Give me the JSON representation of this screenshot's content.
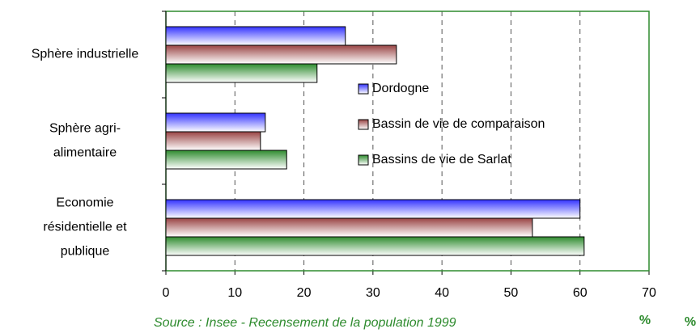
{
  "chart_data": {
    "type": "barh",
    "categories": [
      [
        "Sphère industrielle"
      ],
      [
        "Sphère agri-",
        "alimentaire"
      ],
      [
        "Economie",
        "résidentielle et",
        "publique"
      ]
    ],
    "series": [
      {
        "name": "Dordogne",
        "color": "#3333ff",
        "values": [
          26.0,
          14.4,
          60.0
        ]
      },
      {
        "name": "Bassin de vie de comparaison",
        "color": "#994444",
        "values": [
          33.4,
          13.7,
          53.1
        ]
      },
      {
        "name": "Bassins de vie de Sarlat",
        "color": "#2e8b2e",
        "values": [
          21.9,
          17.5,
          60.6
        ]
      }
    ],
    "xlim": [
      0,
      70
    ],
    "xticks": [
      0,
      10,
      20,
      30,
      40,
      50,
      60,
      70
    ],
    "grid": true,
    "source": "Source : Insee - Recensement de la population 1999",
    "units": [
      "%",
      "%"
    ]
  }
}
